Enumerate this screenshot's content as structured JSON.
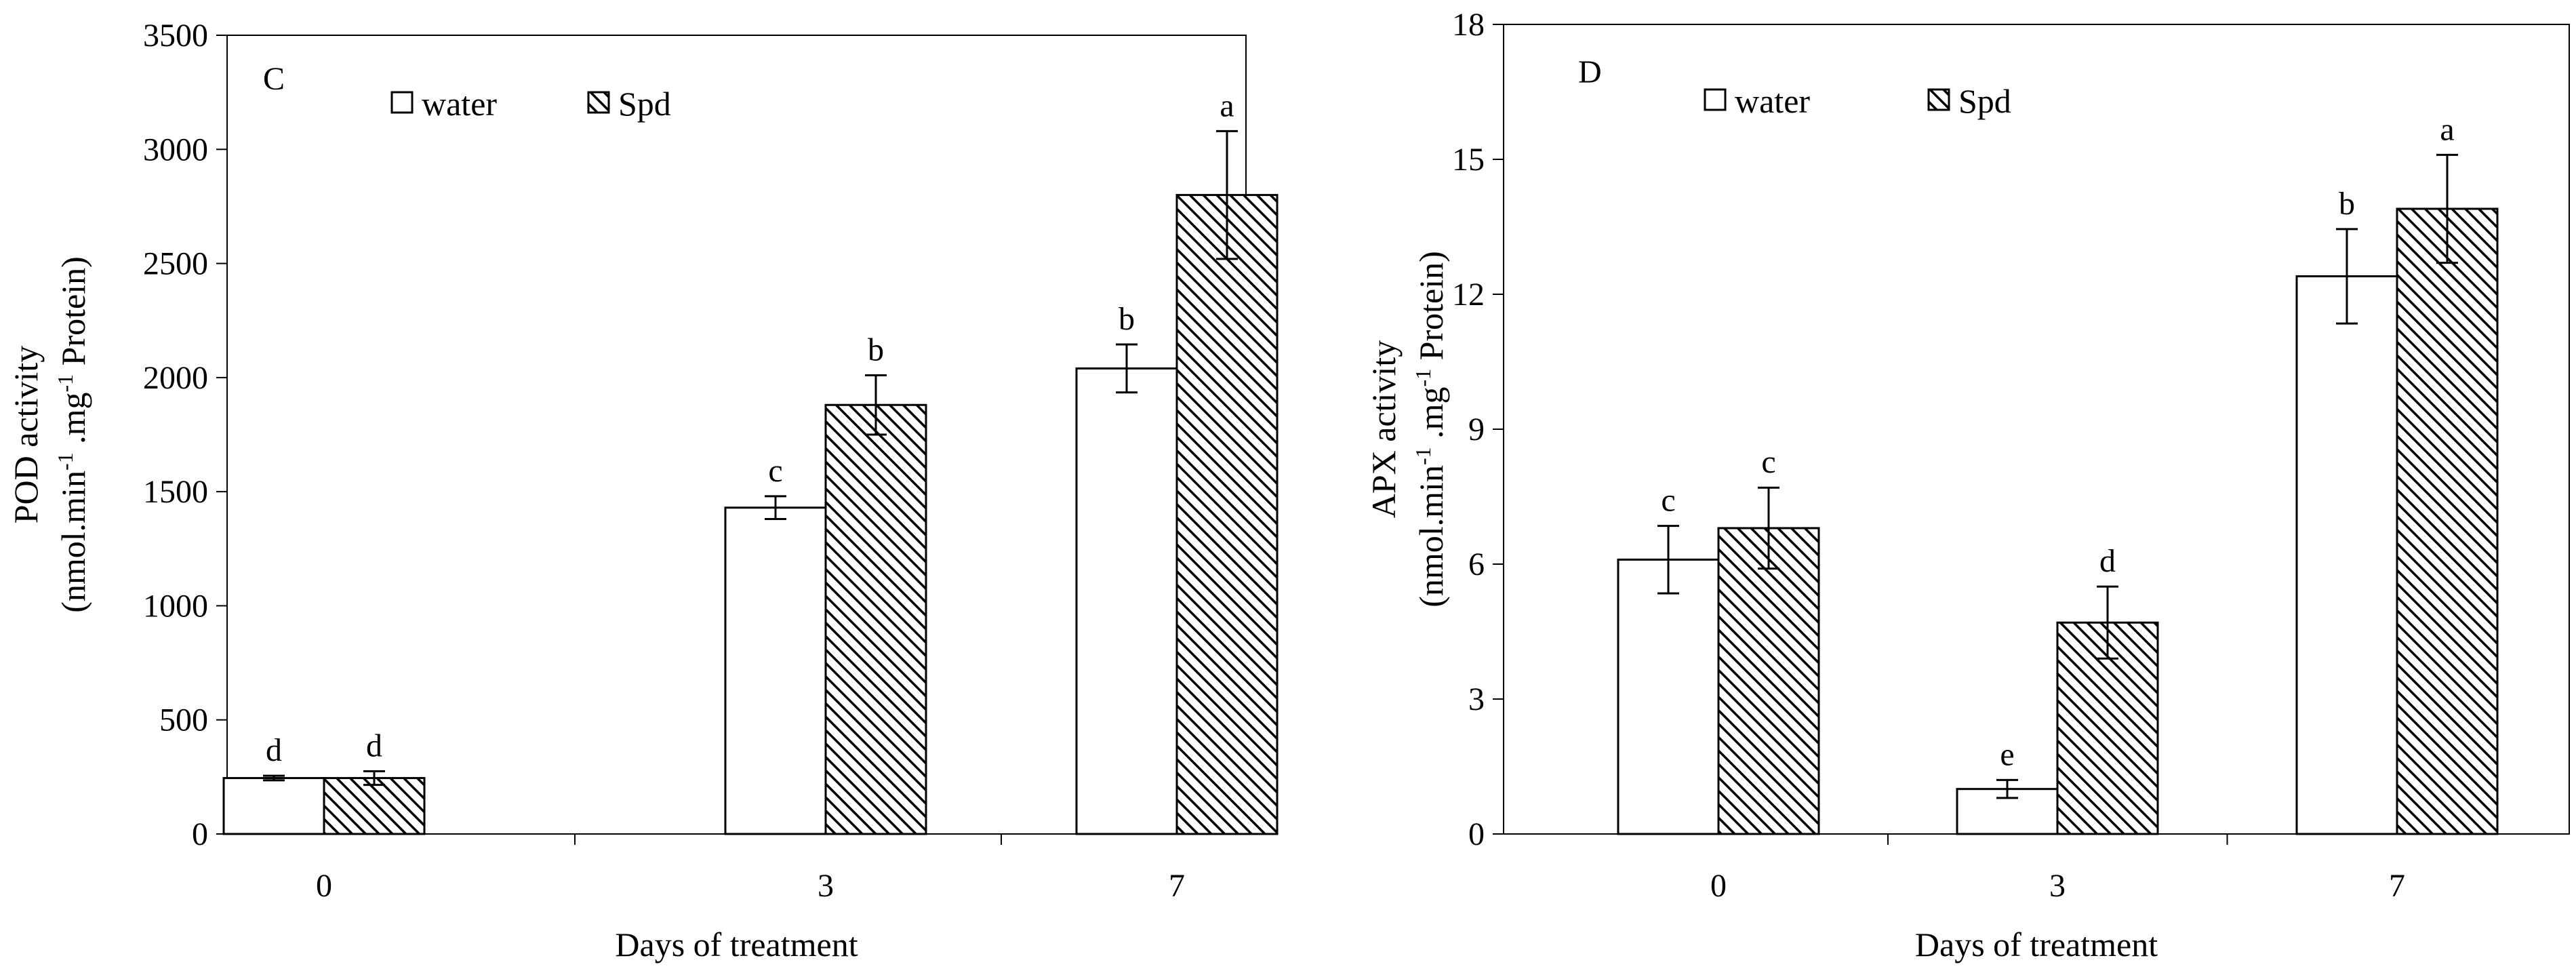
{
  "chart_data": [
    {
      "type": "bar",
      "panel_label": "C",
      "categories": [
        "0",
        "3",
        "7"
      ],
      "series": [
        {
          "name": "water",
          "pattern": "open",
          "values": [
            245,
            1430,
            2040
          ],
          "errors": [
            10,
            50,
            105
          ],
          "letters": [
            "d",
            "c",
            "b"
          ]
        },
        {
          "name": "Spd",
          "pattern": "hatched",
          "values": [
            245,
            1880,
            2800
          ],
          "errors": [
            30,
            130,
            280
          ],
          "letters": [
            "d",
            "b",
            "a"
          ]
        }
      ],
      "xlabel": "Days of treatment",
      "ylabel_line1": "POD activity",
      "ylabel_line2": {
        "pre": "(nmol.min",
        "sup1": "-1",
        "mid": " .mg",
        "sup2": "-1",
        "post": " Protein)"
      },
      "ylim": [
        0,
        3500
      ],
      "yticks": [
        0,
        500,
        1000,
        1500,
        2000,
        2500,
        3000,
        3500
      ],
      "legend_position": "top-left",
      "grid": false
    },
    {
      "type": "bar",
      "panel_label": "D",
      "categories": [
        "0",
        "3",
        "7"
      ],
      "series": [
        {
          "name": "water",
          "pattern": "open",
          "values": [
            6.1,
            1.0,
            12.4
          ],
          "errors": [
            0.75,
            0.2,
            1.05
          ],
          "letters": [
            "c",
            "e",
            "b"
          ]
        },
        {
          "name": "Spd",
          "pattern": "hatched",
          "values": [
            6.8,
            4.7,
            13.9
          ],
          "errors": [
            0.9,
            0.8,
            1.2
          ],
          "letters": [
            "c",
            "d",
            "a"
          ]
        }
      ],
      "xlabel": "Days of treatment",
      "ylabel_line1": "APX activity",
      "ylabel_line2": {
        "pre": "(nmol.min",
        "sup1": "-1",
        "mid": " .mg",
        "sup2": "-1",
        "post": " Protein)"
      },
      "ylim": [
        0,
        18
      ],
      "yticks": [
        0,
        3,
        6,
        9,
        12,
        15,
        18
      ],
      "legend_position": "top-left",
      "grid": false
    }
  ],
  "colors": {
    "axis": "#000000",
    "bar_fill": "#ffffff",
    "hatch": "#000000"
  }
}
